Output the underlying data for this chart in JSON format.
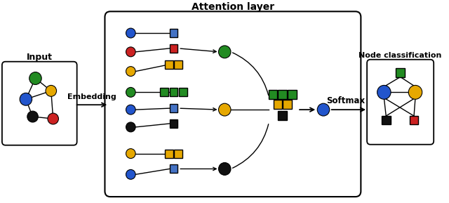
{
  "title": "Attention layer",
  "input_label": "Input",
  "node_class_label": "Node classification",
  "embedding_label": "Embedding",
  "softmax_label": "Softmax",
  "bg_color": "#ffffff",
  "node_colors": {
    "blue": "#2255cc",
    "red": "#cc2222",
    "green": "#228b22",
    "yellow": "#e6a800",
    "black": "#111111"
  },
  "box_colors": {
    "blue": "#4472c4",
    "red": "#cc2222",
    "green": "#228b22",
    "yellow": "#e6a800",
    "black": "#111111"
  },
  "figsize": [
    6.4,
    2.89
  ],
  "dpi": 100
}
